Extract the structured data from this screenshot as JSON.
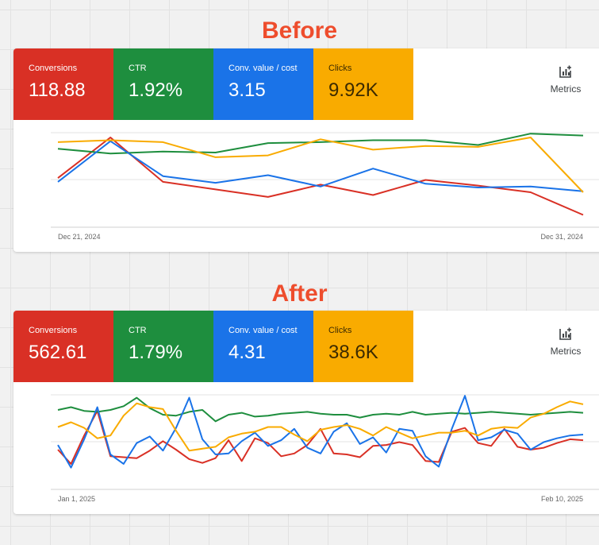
{
  "headings": {
    "before": "Before",
    "after": "After"
  },
  "metrics_button": {
    "label": "Metrics",
    "icon": "add-chart-icon"
  },
  "colors": {
    "conversions": "#d93025",
    "ctr": "#1e8e3e",
    "conv_value_cost": "#1a73e8",
    "clicks": "#f9ab00",
    "heading": "#ee4d2d"
  },
  "before": {
    "tiles": [
      {
        "label": "Conversions",
        "value": "118.88"
      },
      {
        "label": "CTR",
        "value": "1.92%"
      },
      {
        "label": "Conv. value / cost",
        "value": "3.15"
      },
      {
        "label": "Clicks",
        "value": "9.92K"
      }
    ],
    "x_start": "Dec 21, 2024",
    "x_end": "Dec 31, 2024"
  },
  "after": {
    "tiles": [
      {
        "label": "Conversions",
        "value": "562.61"
      },
      {
        "label": "CTR",
        "value": "1.79%"
      },
      {
        "label": "Conv. value / cost",
        "value": "4.31"
      },
      {
        "label": "Clicks",
        "value": "38.6K"
      }
    ],
    "x_start": "Jan 1, 2025",
    "x_end": "Feb 10, 2025"
  },
  "chart_data": [
    {
      "type": "line",
      "x_range": [
        "Dec 21, 2024",
        "Dec 31, 2024"
      ],
      "ylim": [
        0,
        100
      ],
      "series": [
        {
          "color": "#d93025",
          "values": [
            52,
            95,
            48,
            40,
            32,
            45,
            34,
            50,
            44,
            37,
            13
          ]
        },
        {
          "color": "#1e8e3e",
          "values": [
            83,
            78,
            80,
            79,
            89,
            90,
            92,
            92,
            87,
            99,
            97
          ]
        },
        {
          "color": "#1a73e8",
          "values": [
            48,
            91,
            54,
            47,
            55,
            43,
            62,
            46,
            42,
            43,
            38
          ]
        },
        {
          "color": "#f9ab00",
          "values": [
            90,
            92,
            90,
            74,
            76,
            93,
            82,
            86,
            85,
            95,
            37
          ]
        }
      ]
    },
    {
      "type": "line",
      "x_range": [
        "Jan 1, 2025",
        "Feb 10, 2025"
      ],
      "ylim": [
        0,
        100
      ],
      "series": [
        {
          "color": "#d93025",
          "values": [
            42,
            27,
            57,
            83,
            35,
            34,
            33,
            41,
            51,
            42,
            32,
            28,
            33,
            52,
            30,
            54,
            49,
            35,
            38,
            47,
            64,
            38,
            37,
            34,
            46,
            47,
            50,
            47,
            30,
            29,
            61,
            65,
            49,
            46,
            64,
            45,
            42,
            44,
            49,
            53,
            52
          ]
        },
        {
          "color": "#1e8e3e",
          "values": [
            84,
            87,
            83,
            82,
            84,
            88,
            97,
            86,
            79,
            78,
            82,
            84,
            72,
            79,
            81,
            77,
            78,
            80,
            81,
            82,
            80,
            79,
            79,
            76,
            79,
            80,
            79,
            82,
            79,
            80,
            81,
            80,
            81,
            82,
            81,
            80,
            79,
            80,
            81,
            82,
            81
          ]
        },
        {
          "color": "#1a73e8",
          "values": [
            47,
            23,
            53,
            87,
            37,
            27,
            49,
            56,
            41,
            65,
            97,
            53,
            37,
            38,
            51,
            60,
            46,
            52,
            64,
            44,
            38,
            61,
            70,
            48,
            55,
            39,
            64,
            62,
            35,
            24,
            64,
            99,
            52,
            55,
            63,
            59,
            42,
            50,
            54,
            57,
            58
          ]
        },
        {
          "color": "#f9ab00",
          "values": [
            66,
            71,
            65,
            54,
            57,
            78,
            91,
            87,
            85,
            62,
            41,
            43,
            45,
            55,
            59,
            61,
            66,
            66,
            58,
            51,
            63,
            66,
            68,
            64,
            57,
            66,
            60,
            54,
            57,
            60,
            60,
            62,
            57,
            64,
            66,
            65,
            76,
            80,
            87,
            93,
            90
          ]
        }
      ]
    }
  ]
}
